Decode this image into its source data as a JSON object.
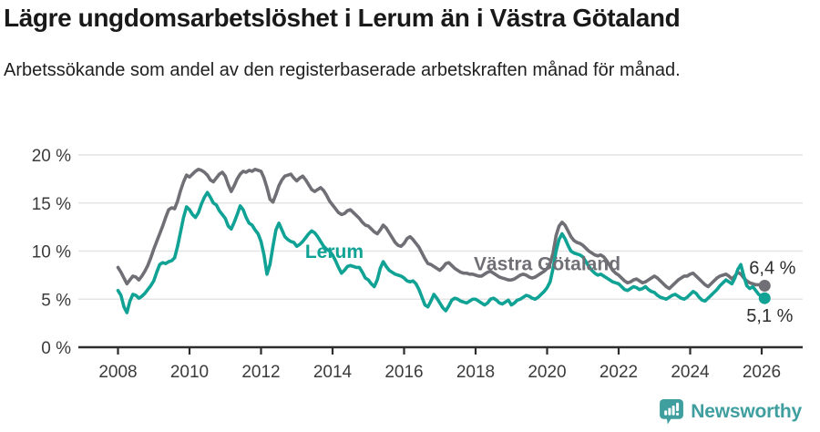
{
  "header": {
    "title": "Lägre ungdomsarbetslöshet i Lerum än i Västra Götaland",
    "subtitle": "Arbetssökande som andel av den registerbaserade arbetskraften månad för månad."
  },
  "chart_data": {
    "type": "line",
    "title": "Lägre ungdomsarbetslöshet i Lerum än i Västra Götaland",
    "subtitle": "Arbetssökande som andel av den registerbaserade arbetskraften månad för månad.",
    "x_axis": {
      "start_year": 2008,
      "interval": "monthly",
      "tick_years": [
        2008,
        2010,
        2012,
        2014,
        2016,
        2018,
        2020,
        2022,
        2024,
        2026
      ]
    },
    "y_axis": {
      "ticks": [
        0,
        5,
        10,
        15,
        20
      ],
      "suffix": " %",
      "range": [
        0,
        20
      ]
    },
    "grid": "horizontal",
    "legend": "inline-labels",
    "series": [
      {
        "name": "Västra Götaland",
        "slug": "vastra-gotaland",
        "color": "#6f6f75",
        "end_label": "6,4 %",
        "last_value": 6.4,
        "end_label_offset": [
          -17,
          -13
        ],
        "values": [
          8.3,
          7.8,
          7.2,
          6.6,
          7.0,
          7.4,
          7.3,
          7.0,
          7.4,
          7.9,
          8.5,
          9.3,
          10.2,
          11.0,
          11.8,
          12.6,
          13.5,
          14.3,
          14.5,
          14.4,
          15.2,
          16.3,
          17.2,
          17.9,
          17.7,
          18.0,
          18.3,
          18.5,
          18.4,
          18.2,
          17.9,
          17.4,
          17.2,
          17.6,
          18.0,
          18.2,
          17.8,
          16.9,
          16.2,
          16.8,
          17.5,
          18.0,
          18.3,
          18.2,
          18.4,
          18.3,
          18.5,
          18.4,
          18.3,
          17.6,
          16.6,
          15.4,
          15.1,
          15.9,
          16.8,
          17.4,
          17.8,
          17.9,
          18.0,
          17.6,
          17.3,
          17.6,
          17.8,
          17.4,
          16.9,
          16.4,
          16.2,
          16.4,
          16.6,
          16.3,
          15.8,
          15.2,
          14.8,
          14.4,
          14.0,
          13.8,
          13.9,
          14.2,
          14.3,
          14.0,
          13.7,
          13.4,
          13.0,
          12.7,
          12.6,
          12.3,
          12.0,
          11.8,
          12.2,
          12.7,
          12.4,
          11.9,
          11.4,
          10.9,
          10.6,
          10.5,
          10.8,
          11.3,
          11.5,
          11.2,
          10.8,
          10.4,
          9.8,
          9.2,
          8.7,
          8.6,
          8.4,
          8.2,
          8.0,
          8.3,
          8.7,
          8.8,
          8.5,
          8.2,
          8.0,
          7.8,
          7.7,
          7.7,
          7.6,
          7.6,
          7.5,
          7.4,
          7.4,
          7.6,
          7.8,
          7.9,
          7.7,
          7.5,
          7.3,
          7.2,
          7.1,
          7.0,
          7.0,
          7.1,
          7.3,
          7.5,
          7.6,
          7.5,
          7.3,
          7.2,
          7.3,
          7.5,
          7.7,
          7.9,
          8.2,
          8.7,
          9.8,
          11.6,
          12.6,
          13.0,
          12.7,
          12.1,
          11.5,
          11.1,
          10.9,
          10.8,
          10.6,
          10.3,
          10.0,
          9.8,
          9.6,
          9.5,
          9.6,
          9.4,
          9.0,
          8.5,
          8.0,
          7.7,
          7.5,
          7.2,
          6.9,
          6.7,
          6.8,
          7.0,
          7.1,
          6.9,
          6.7,
          6.8,
          7.0,
          7.2,
          7.4,
          7.2,
          6.9,
          6.6,
          6.3,
          6.1,
          6.4,
          6.7,
          7.0,
          7.2,
          7.4,
          7.4,
          7.6,
          7.7,
          7.4,
          7.1,
          6.8,
          6.5,
          6.3,
          6.6,
          6.9,
          7.2,
          7.4,
          7.5,
          7.6,
          7.4,
          7.1,
          7.4,
          7.8,
          7.6,
          7.2,
          6.9,
          6.7,
          6.6,
          6.5,
          6.5,
          6.4,
          6.4
        ]
      },
      {
        "name": "Lerum",
        "slug": "lerum",
        "color": "#10a294",
        "end_label": "5,1 %",
        "last_value": 5.1,
        "end_label_offset": [
          -20,
          26
        ],
        "values": [
          5.9,
          5.4,
          4.2,
          3.6,
          4.8,
          5.5,
          5.4,
          5.1,
          5.3,
          5.6,
          6.0,
          6.4,
          6.9,
          7.8,
          8.6,
          8.8,
          8.7,
          8.9,
          9.0,
          9.3,
          10.5,
          12.0,
          13.5,
          14.6,
          14.3,
          13.8,
          13.5,
          14.0,
          14.9,
          15.6,
          16.1,
          15.6,
          15.0,
          14.8,
          14.2,
          13.8,
          13.4,
          12.6,
          12.3,
          13.0,
          13.8,
          14.7,
          14.3,
          13.5,
          12.9,
          12.7,
          12.2,
          11.8,
          11.0,
          9.6,
          7.6,
          8.6,
          10.5,
          12.2,
          12.9,
          12.2,
          11.5,
          11.2,
          11.0,
          10.9,
          10.5,
          10.7,
          11.0,
          11.4,
          11.8,
          12.1,
          11.9,
          11.5,
          11.0,
          10.5,
          10.2,
          10.0,
          9.6,
          9.0,
          8.3,
          7.7,
          8.0,
          8.4,
          8.5,
          8.4,
          8.3,
          8.3,
          7.8,
          7.2,
          7.0,
          6.6,
          6.3,
          7.0,
          8.2,
          8.9,
          8.4,
          8.0,
          7.8,
          7.6,
          7.5,
          7.4,
          7.2,
          6.9,
          6.8,
          6.9,
          6.6,
          6.0,
          5.2,
          4.4,
          4.2,
          4.8,
          5.5,
          5.1,
          4.6,
          4.1,
          3.8,
          4.3,
          4.9,
          5.1,
          5.0,
          4.8,
          4.7,
          4.6,
          4.8,
          5.0,
          5.0,
          4.8,
          4.6,
          4.4,
          4.6,
          5.0,
          5.1,
          4.9,
          4.6,
          4.5,
          4.7,
          4.9,
          4.4,
          4.6,
          4.9,
          5.0,
          5.2,
          5.4,
          5.3,
          5.1,
          5.0,
          5.2,
          5.5,
          5.8,
          6.2,
          6.8,
          8.2,
          10.0,
          11.2,
          11.8,
          11.3,
          10.6,
          10.0,
          9.8,
          9.7,
          9.6,
          9.4,
          8.9,
          8.4,
          8.0,
          7.7,
          7.5,
          7.6,
          7.4,
          7.2,
          7.0,
          6.8,
          6.7,
          6.6,
          6.3,
          6.0,
          5.9,
          6.1,
          6.3,
          6.2,
          6.0,
          6.1,
          6.3,
          6.0,
          5.8,
          5.7,
          5.4,
          5.2,
          5.1,
          5.0,
          5.2,
          5.4,
          5.5,
          5.3,
          5.1,
          5.0,
          5.2,
          5.5,
          5.8,
          5.6,
          5.2,
          4.9,
          4.8,
          5.1,
          5.4,
          5.7,
          6.0,
          6.4,
          6.7,
          7.0,
          6.8,
          6.6,
          7.2,
          8.1,
          8.6,
          7.4,
          6.4,
          6.1,
          6.3,
          5.9,
          5.5,
          5.3,
          5.1
        ]
      }
    ],
    "series_labels": [
      {
        "text": "Lerum",
        "year": 2014.05,
        "value": 9.3,
        "color": "#10a294"
      },
      {
        "text": "Västra Götaland",
        "year": 2020.0,
        "value": 8.0,
        "color": "#6f6f75"
      }
    ]
  },
  "footer": {
    "brand": "Newsworthy",
    "brand_color": "#3f9f9f"
  }
}
